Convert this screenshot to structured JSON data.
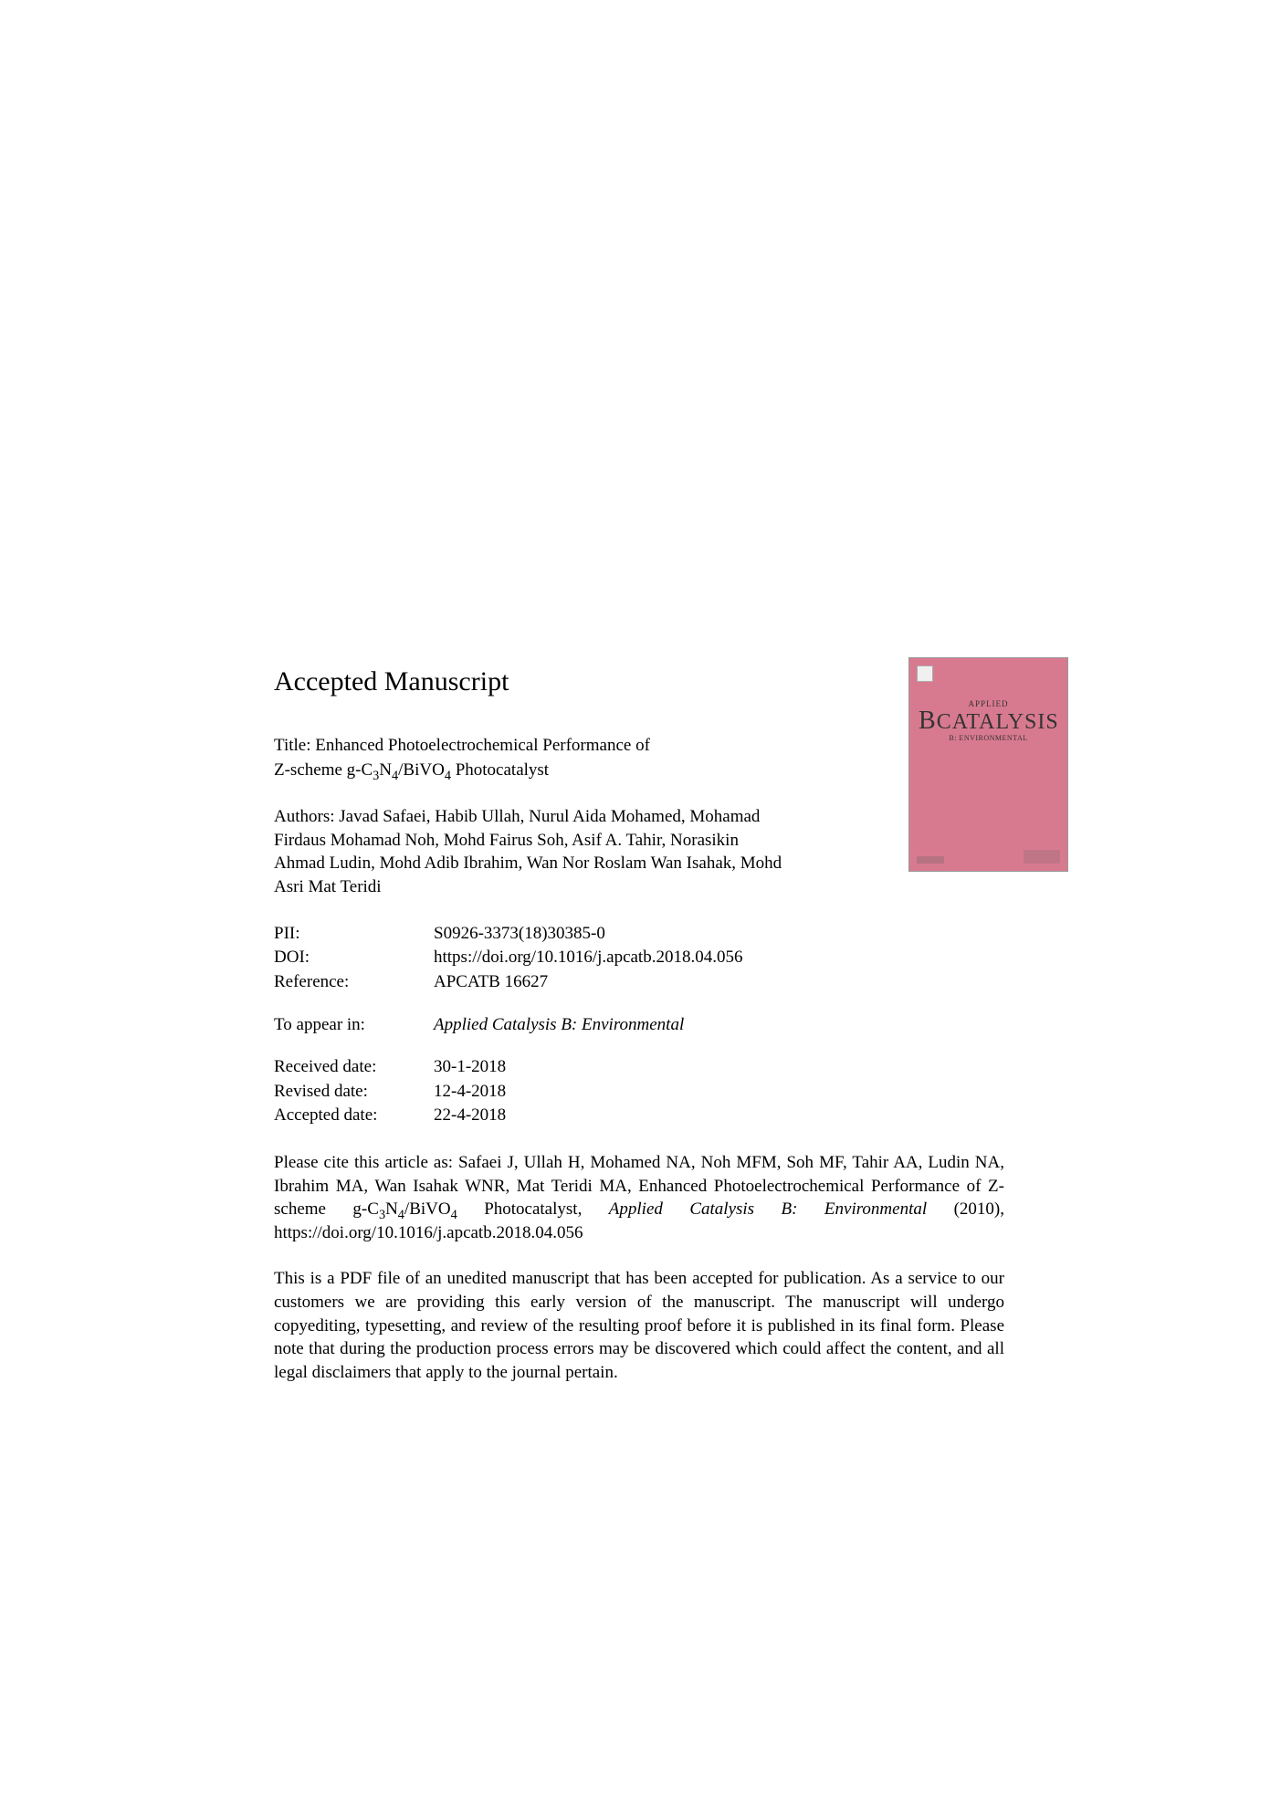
{
  "header": "Accepted Manuscript",
  "title": {
    "label": "Title:",
    "line1": "Enhanced Photoelectrochemical Performance of",
    "line2_pre": "Z-scheme g-C",
    "line2_sub1": "3",
    "line2_mid": "N",
    "line2_sub2": "4",
    "line2_mid2": "/BiVO",
    "line2_sub3": "4",
    "line2_end": " Photocatalyst"
  },
  "authors": {
    "label": "Authors:",
    "text": "Javad Safaei, Habib Ullah, Nurul Aida Mohamed, Mohamad Firdaus Mohamad Noh, Mohd Fairus Soh, Asif A. Tahir, Norasikin Ahmad Ludin, Mohd Adib Ibrahim, Wan Nor Roslam Wan Isahak, Mohd Asri Mat Teridi"
  },
  "meta": {
    "pii_label": "PII:",
    "pii_value": "S0926-3373(18)30385-0",
    "doi_label": "DOI:",
    "doi_value": "https://doi.org/10.1016/j.apcatb.2018.04.056",
    "ref_label": "Reference:",
    "ref_value": "APCATB 16627"
  },
  "appear": {
    "label": "To appear in:",
    "value": "Applied Catalysis B: Environmental"
  },
  "dates": {
    "received_label": "Received date:",
    "received_value": "30-1-2018",
    "revised_label": "Revised date:",
    "revised_value": "12-4-2018",
    "accepted_label": "Accepted date:",
    "accepted_value": "22-4-2018"
  },
  "citation": {
    "pre": "Please cite this article as: Safaei J, Ullah H, Mohamed NA, Noh MFM, Soh MF, Tahir AA, Ludin NA, Ibrahim MA, Wan Isahak WNR, Mat Teridi MA, Enhanced Photoelectrochemical Performance of Z-scheme g-C",
    "sub1": "3",
    "mid1": "N",
    "sub2": "4",
    "mid2": "/BiVO",
    "sub3": "4",
    "mid3": " Photocatalyst, ",
    "journal": "Applied Catalysis B: Environmental",
    "year": " (2010), ",
    "link": "https://doi.org/10.1016/j.apcatb.2018.04.056"
  },
  "disclaimer": "This is a PDF file of an unedited manuscript that has been accepted for publication. As a service to our customers we are providing this early version of the manuscript. The manuscript will undergo copyediting, typesetting, and review of the resulting proof before it is published in its final form. Please note that during the production process errors may be discovered which could affect the content, and all legal disclaimers that apply to the journal pertain.",
  "cover": {
    "applied": "APPLIED",
    "catalysis_b": "B",
    "catalysis_rest": "CATALYSIS",
    "subtitle": "B: ENVIRONMENTAL",
    "background_color": "#d87a8f"
  }
}
